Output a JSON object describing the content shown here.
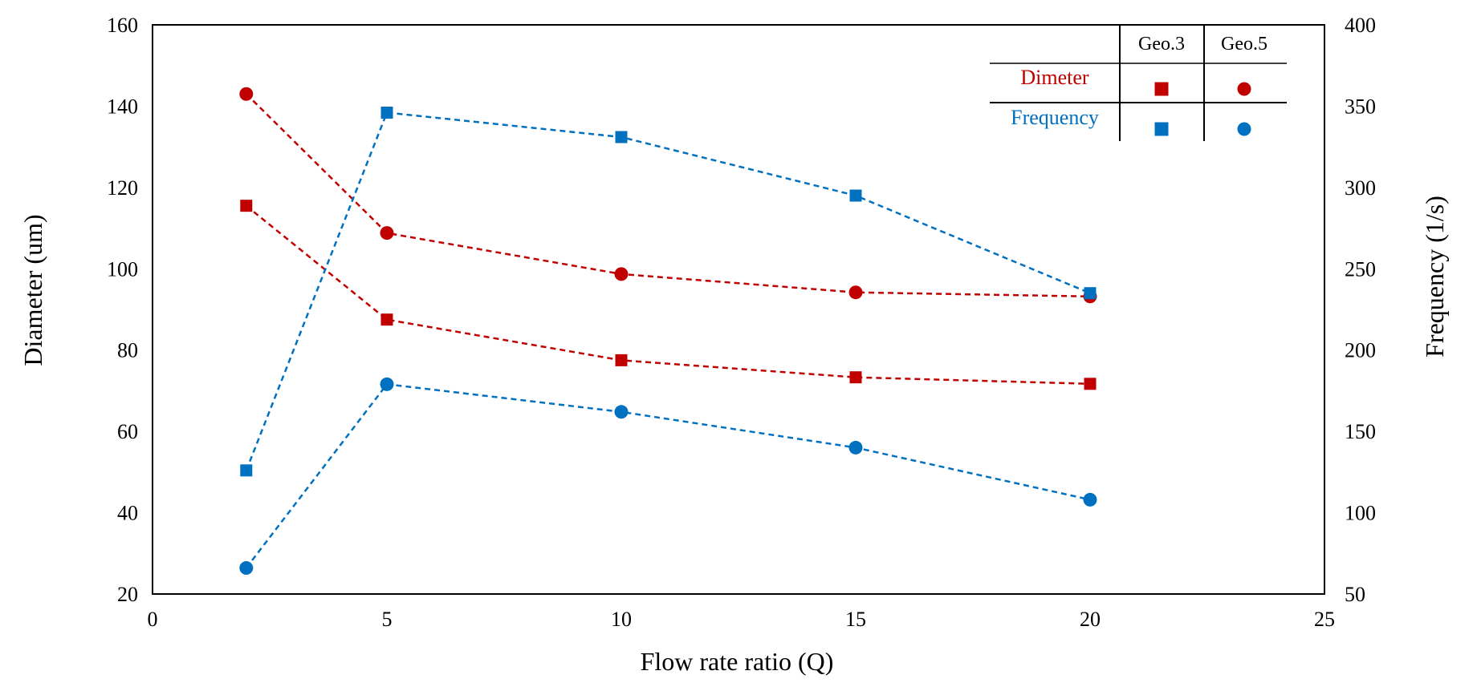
{
  "chart_data": {
    "type": "line",
    "xlabel": "Flow rate ratio (Q)",
    "ylabel": "Diameter (um)",
    "y2label": "Frequency (1/s)",
    "xlim": [
      0,
      25
    ],
    "ylim": [
      20,
      160
    ],
    "y2lim": [
      50,
      400
    ],
    "xticks": [
      "0",
      "5",
      "10",
      "15",
      "20",
      "25"
    ],
    "yticks": [
      "20",
      "40",
      "60",
      "80",
      "100",
      "120",
      "140",
      "160"
    ],
    "y2ticks": [
      "50",
      "100",
      "150",
      "200",
      "250",
      "300",
      "350",
      "400"
    ],
    "grid": false,
    "legend_position": "top-right",
    "legend": {
      "columns": [
        "Geo.3",
        "Geo.5"
      ],
      "rows": [
        {
          "label": "Dimeter",
          "color": "#c00000"
        },
        {
          "label": "Frequency",
          "color": "#0070c0"
        }
      ]
    },
    "series": [
      {
        "quantity": "Dimeter",
        "geometry": "Geo.3",
        "axis": "left",
        "marker": "square",
        "color": "#c00000",
        "x": [
          2,
          5,
          10,
          15,
          20
        ],
        "y": [
          115.5,
          87.5,
          77.5,
          73.3,
          71.7
        ]
      },
      {
        "quantity": "Dimeter",
        "geometry": "Geo.5",
        "axis": "left",
        "marker": "circle",
        "color": "#c00000",
        "x": [
          2,
          5,
          10,
          15,
          20
        ],
        "y": [
          143,
          108.8,
          98.7,
          94.2,
          93.2
        ]
      },
      {
        "quantity": "Frequency",
        "geometry": "Geo.3",
        "axis": "right",
        "marker": "square",
        "color": "#0070c0",
        "x": [
          2,
          5,
          10,
          15,
          20
        ],
        "y": [
          126,
          346,
          331,
          295,
          235
        ]
      },
      {
        "quantity": "Frequency",
        "geometry": "Geo.5",
        "axis": "right",
        "marker": "circle",
        "color": "#0070c0",
        "x": [
          2,
          5,
          10,
          15,
          20
        ],
        "y": [
          66,
          179,
          162,
          140,
          108
        ]
      }
    ]
  }
}
